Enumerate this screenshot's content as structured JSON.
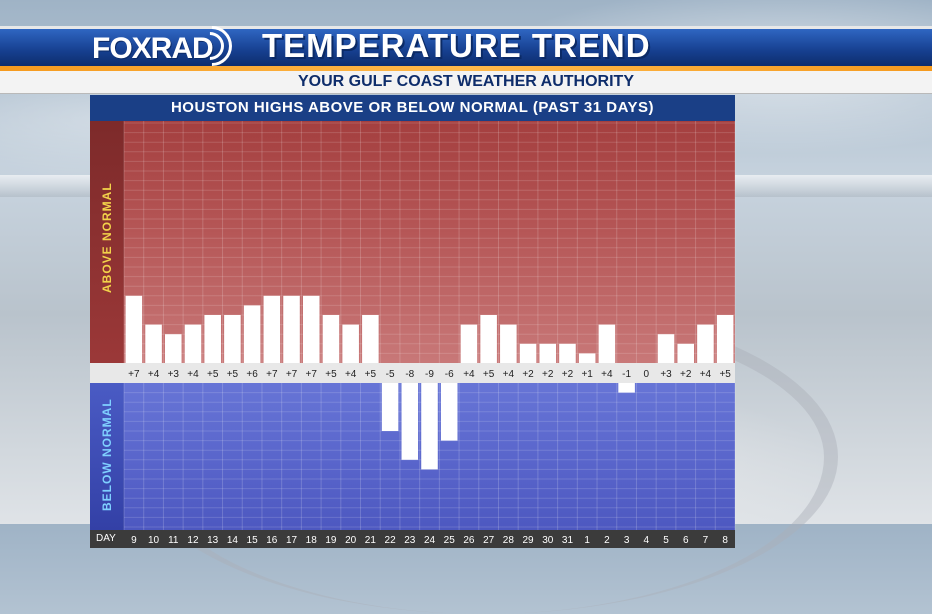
{
  "header": {
    "logo_text": "FOXRAD",
    "title": "TEMPERATURE TREND",
    "subtitle": "YOUR GULF COAST WEATHER AUTHORITY"
  },
  "colors": {
    "header_blue": "#163f8f",
    "accent_orange": "#f59a1e",
    "above_panel": "#a43f3f",
    "below_panel": "#5a66cc",
    "above_label": "#f2d24a",
    "below_label": "#7fd0ff",
    "bar": "#ffffff"
  },
  "chart_data": {
    "type": "bar",
    "title": "HOUSTON HIGHS ABOVE OR BELOW NORMAL (PAST 31 DAYS)",
    "above_label": "ABOVE NORMAL",
    "below_label": "BELOW NORMAL",
    "day_axis_label": "DAY",
    "categories": [
      "9",
      "10",
      "11",
      "12",
      "13",
      "14",
      "15",
      "16",
      "17",
      "18",
      "19",
      "20",
      "21",
      "22",
      "23",
      "24",
      "25",
      "26",
      "27",
      "28",
      "29",
      "30",
      "31",
      "1",
      "2",
      "3",
      "4",
      "5",
      "6",
      "7",
      "8"
    ],
    "values": [
      7,
      4,
      3,
      4,
      5,
      5,
      6,
      7,
      7,
      7,
      5,
      4,
      5,
      -5,
      -8,
      -9,
      -6,
      4,
      5,
      4,
      2,
      2,
      2,
      1,
      4,
      -1,
      0,
      3,
      2,
      4,
      5
    ],
    "value_labels": [
      "+7",
      "+4",
      "+3",
      "+4",
      "+5",
      "+5",
      "+6",
      "+7",
      "+7",
      "+7",
      "+5",
      "+4",
      "+5",
      "-5",
      "-8",
      "-9",
      "-6",
      "+4",
      "+5",
      "+4",
      "+2",
      "+2",
      "+2",
      "+1",
      "+4",
      "-1",
      "0",
      "+3",
      "+2",
      "+4",
      "+5"
    ],
    "ylim_above": [
      0,
      15
    ],
    "ylim_below": [
      -15,
      0
    ],
    "grid": true
  }
}
